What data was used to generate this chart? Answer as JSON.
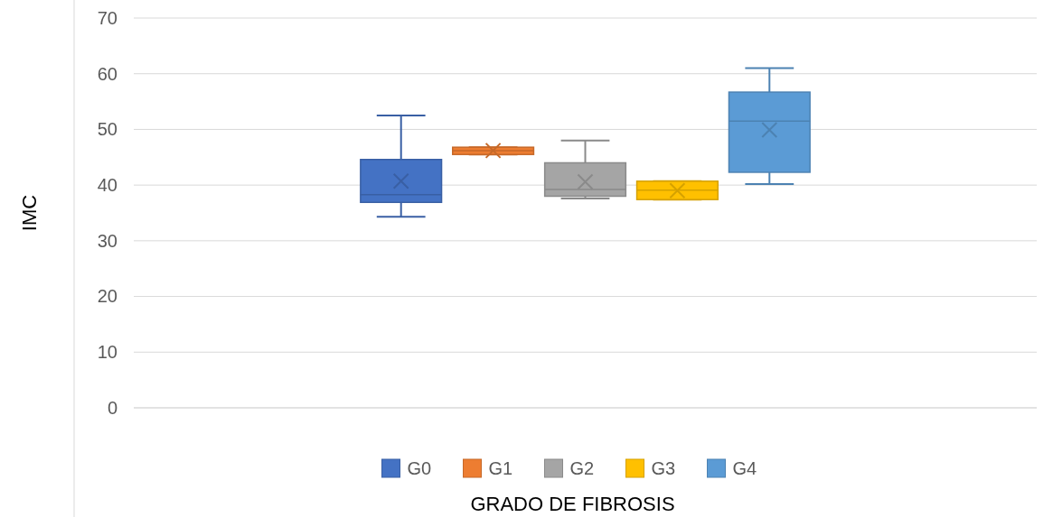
{
  "chart_data": {
    "type": "box",
    "ylabel": "IMC",
    "xlabel": "GRADO DE FIBROSIS",
    "categories": [
      null
    ],
    "ylim": [
      0,
      70
    ],
    "yticks": [
      0,
      10,
      20,
      30,
      40,
      50,
      60,
      70
    ],
    "grid": "y",
    "legend": "bottom",
    "series": [
      {
        "name": "G0",
        "color": "#4472c4",
        "boxes": [
          {
            "low": 34.3,
            "q1": 36.9,
            "median": 38.3,
            "q3": 44.6,
            "high": 52.5,
            "mean": 40.7
          }
        ]
      },
      {
        "name": "G1",
        "color": "#ed7d31",
        "boxes": [
          {
            "low": 45.5,
            "q1": 45.5,
            "median": 46.2,
            "q3": 46.8,
            "high": 46.8,
            "mean": 46.2
          }
        ]
      },
      {
        "name": "G2",
        "color": "#a5a5a5",
        "boxes": [
          {
            "low": 37.6,
            "q1": 38.0,
            "median": 39.2,
            "q3": 44.0,
            "high": 48.0,
            "mean": 40.6
          }
        ]
      },
      {
        "name": "G3",
        "color": "#ffc000",
        "boxes": [
          {
            "low": 37.4,
            "q1": 37.4,
            "median": 39.1,
            "q3": 40.7,
            "high": 40.7,
            "mean": 39.0
          }
        ]
      },
      {
        "name": "G4",
        "color": "#5b9bd5",
        "boxes": [
          {
            "low": 40.2,
            "q1": 42.3,
            "median": 51.5,
            "q3": 56.7,
            "high": 61.0,
            "mean": 49.9
          }
        ]
      }
    ]
  }
}
